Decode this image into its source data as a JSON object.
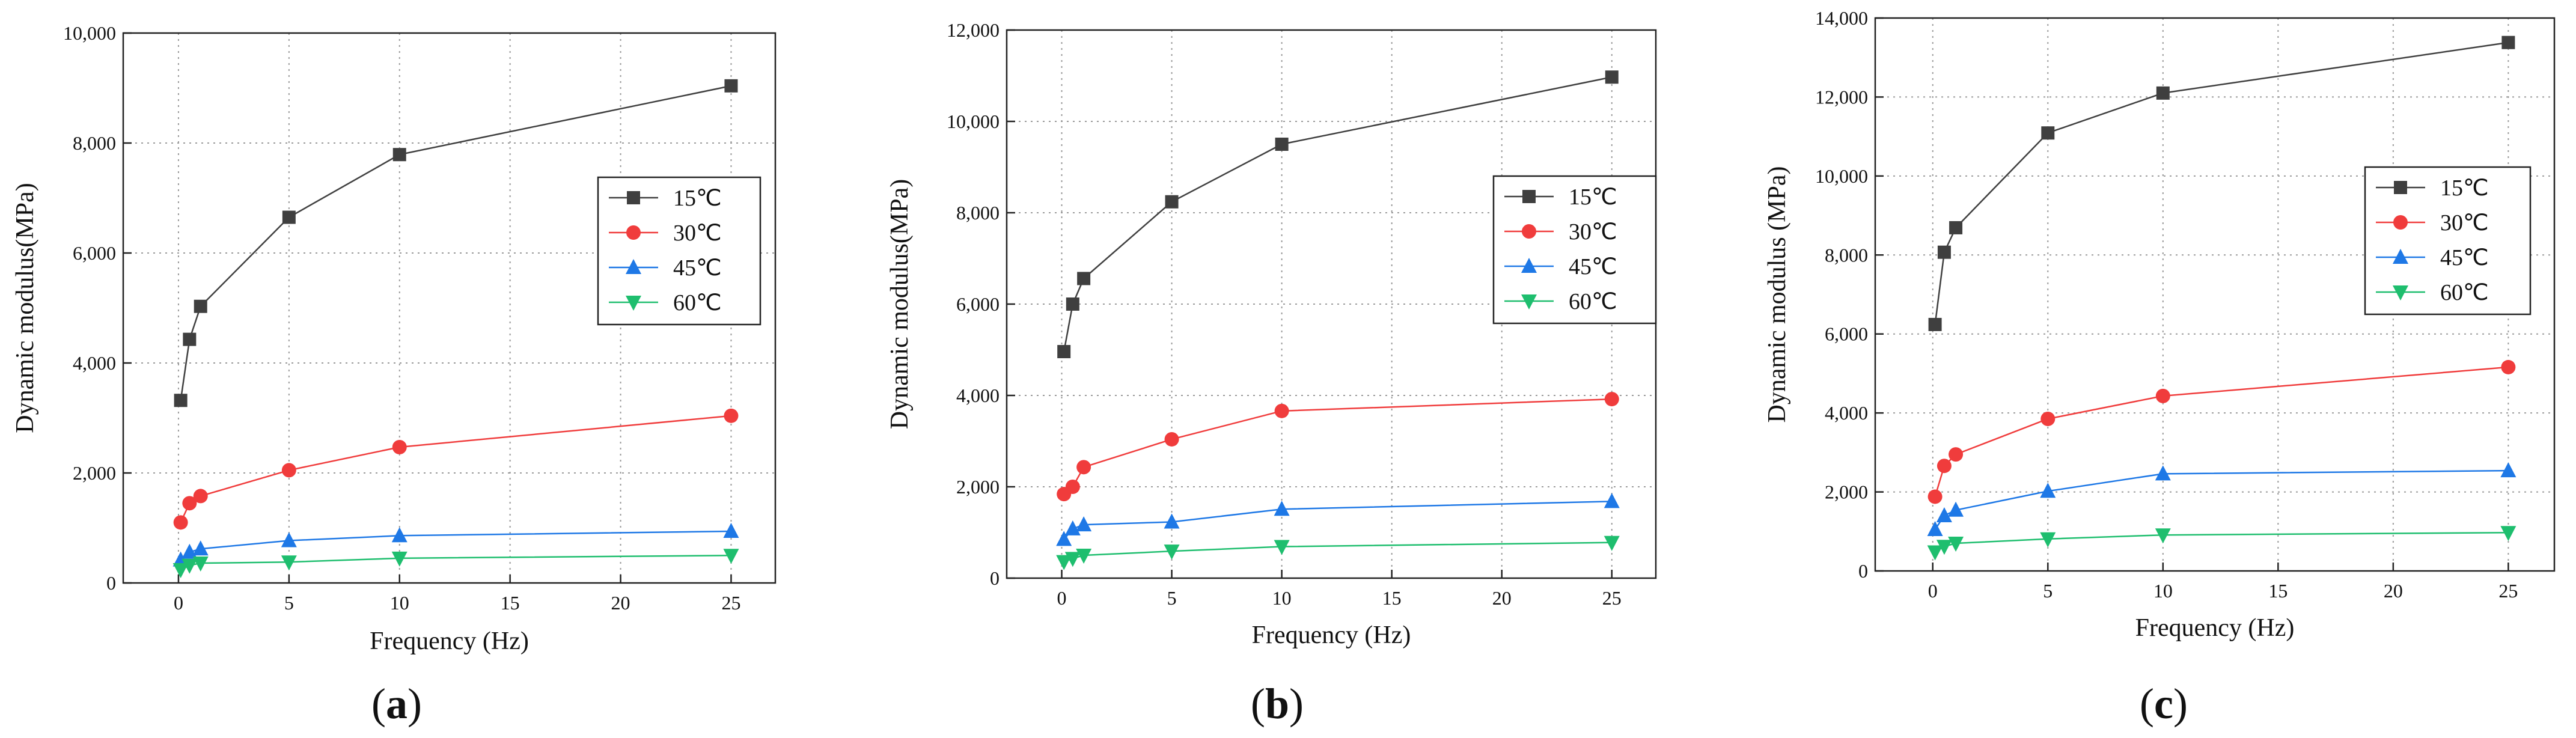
{
  "chart_data": [
    {
      "type": "line",
      "panel": "a",
      "xlabel": "Frequency (Hz)",
      "ylabel": "Dynamic modulus(MPa)",
      "xlim": [
        -2.5,
        27
      ],
      "ylim": [
        0,
        10000
      ],
      "xticks": [
        0,
        5,
        10,
        15,
        20,
        25
      ],
      "yticks": [
        0,
        2000,
        4000,
        6000,
        8000,
        10000
      ],
      "ytick_labels": [
        "0",
        "2,000",
        "4,000",
        "6,000",
        "8,000",
        "10,000"
      ],
      "x": [
        0.1,
        0.5,
        1,
        5,
        10,
        25
      ],
      "legend_position": "right",
      "series": [
        {
          "name": "15℃",
          "color": "#3f3f3f",
          "marker": "square",
          "values": [
            3320,
            4430,
            5030,
            6650,
            7790,
            9040
          ]
        },
        {
          "name": "30℃",
          "color": "#f03c3c",
          "marker": "circle",
          "values": [
            1100,
            1450,
            1580,
            2050,
            2470,
            3040
          ]
        },
        {
          "name": "45℃",
          "color": "#1e78e6",
          "marker": "triangle-up",
          "values": [
            420,
            560,
            620,
            770,
            860,
            940
          ]
        },
        {
          "name": "60℃",
          "color": "#1ebe6e",
          "marker": "triangle-down",
          "values": [
            240,
            320,
            360,
            380,
            450,
            500
          ]
        }
      ]
    },
    {
      "type": "line",
      "panel": "b",
      "xlabel": "Frequency (Hz)",
      "ylabel": "Dynamic modulus(MPa)",
      "xlim": [
        -2.5,
        27
      ],
      "ylim": [
        0,
        12000
      ],
      "xticks": [
        0,
        5,
        10,
        15,
        20,
        25
      ],
      "yticks": [
        0,
        2000,
        4000,
        6000,
        8000,
        10000,
        12000
      ],
      "ytick_labels": [
        "0",
        "2,000",
        "4,000",
        "6,000",
        "8,000",
        "10,000",
        "12,000"
      ],
      "x": [
        0.1,
        0.5,
        1,
        5,
        10,
        25
      ],
      "legend_position": "right",
      "series": [
        {
          "name": "15℃",
          "color": "#3f3f3f",
          "marker": "square",
          "values": [
            4960,
            6000,
            6560,
            8240,
            9500,
            10970
          ]
        },
        {
          "name": "30℃",
          "color": "#f03c3c",
          "marker": "circle",
          "values": [
            1840,
            2000,
            2430,
            3040,
            3660,
            3920
          ]
        },
        {
          "name": "45℃",
          "color": "#1e78e6",
          "marker": "triangle-up",
          "values": [
            850,
            1080,
            1170,
            1230,
            1510,
            1680
          ]
        },
        {
          "name": "60℃",
          "color": "#1ebe6e",
          "marker": "triangle-down",
          "values": [
            360,
            430,
            500,
            590,
            690,
            780
          ]
        }
      ]
    },
    {
      "type": "line",
      "panel": "c",
      "xlabel": "Frequency (Hz)",
      "ylabel": "Dynamic modulus (MPa)",
      "xlim": [
        -2.5,
        27
      ],
      "ylim": [
        0,
        14000
      ],
      "xticks": [
        0,
        5,
        10,
        15,
        20,
        25
      ],
      "yticks": [
        0,
        2000,
        4000,
        6000,
        8000,
        10000,
        12000,
        14000
      ],
      "ytick_labels": [
        "0",
        "2,000",
        "4,000",
        "6,000",
        "8,000",
        "10,000",
        "12,000",
        "14,000"
      ],
      "x": [
        0.1,
        0.5,
        1,
        5,
        10,
        25
      ],
      "legend_position": "right",
      "series": [
        {
          "name": "15℃",
          "color": "#3f3f3f",
          "marker": "square",
          "values": [
            6240,
            8070,
            8690,
            11090,
            12100,
            13380
          ]
        },
        {
          "name": "30℃",
          "color": "#f03c3c",
          "marker": "circle",
          "values": [
            1880,
            2660,
            2950,
            3850,
            4430,
            5160
          ]
        },
        {
          "name": "45℃",
          "color": "#1e78e6",
          "marker": "triangle-up",
          "values": [
            1050,
            1400,
            1540,
            2020,
            2460,
            2540
          ]
        },
        {
          "name": "60℃",
          "color": "#1ebe6e",
          "marker": "triangle-down",
          "values": [
            480,
            620,
            700,
            810,
            910,
            970
          ]
        }
      ]
    }
  ],
  "subcaptions": [
    "a",
    "b",
    "c"
  ]
}
